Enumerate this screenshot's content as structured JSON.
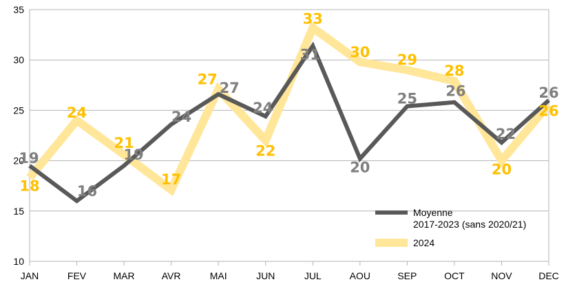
{
  "chart_data": {
    "type": "line",
    "categories": [
      "JAN",
      "FEV",
      "MAR",
      "AVR",
      "MAI",
      "JUN",
      "JUL",
      "AOU",
      "SEP",
      "OCT",
      "NOV",
      "DEC"
    ],
    "ylim": [
      10,
      35
    ],
    "yticks": [
      10,
      15,
      20,
      25,
      30,
      35
    ],
    "grid": "horizontal",
    "legend_position": "bottom-right",
    "series": [
      {
        "name_lines": [
          "Moyenne",
          "2017-2023 (sans 2020/21)"
        ],
        "color": "#595959",
        "label_color": "#7f7f7f",
        "values": [
          19.5,
          16,
          19.5,
          23.6,
          26.6,
          24.4,
          31.4,
          20.2,
          25.4,
          25.8,
          21.8,
          26.0
        ],
        "labels": [
          "19",
          "16",
          "19",
          "24",
          "27",
          "24",
          "31",
          "20",
          "25",
          "26",
          "22",
          "26"
        ]
      },
      {
        "name_lines": [
          "2024"
        ],
        "color": "#ffe699",
        "label_color": "#ffc000",
        "values": [
          18.3,
          24.0,
          20.6,
          17.1,
          27.1,
          22.0,
          33.2,
          29.8,
          29.0,
          27.9,
          20.0,
          25.6
        ],
        "labels": [
          "18",
          "24",
          "21",
          "17",
          "27",
          "22",
          "33",
          "30",
          "29",
          "28",
          "20",
          "26"
        ]
      }
    ]
  }
}
